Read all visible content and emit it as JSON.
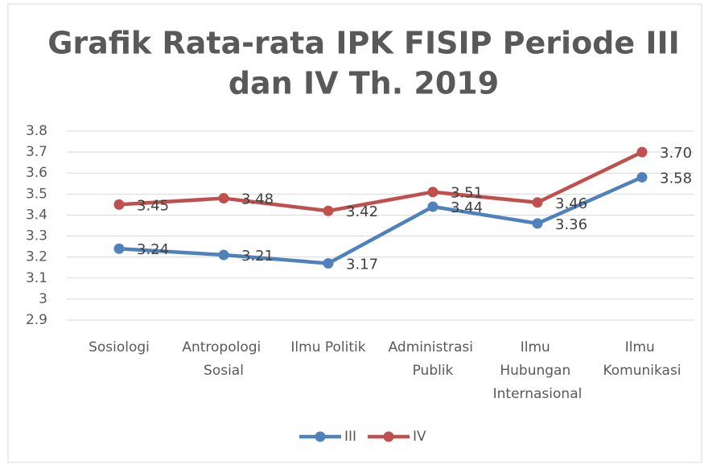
{
  "chart_data": {
    "type": "line",
    "title": [
      "Grafik Rata-rata IPK FISIP Periode III",
      "dan IV Th. 2019"
    ],
    "categories": [
      "Sosiologi",
      "Antropologi Sosial",
      "Ilmu Politik",
      "Administrasi Publik",
      "Ilmu Hubungan Internasional",
      "Ilmu Komunikasi"
    ],
    "series": [
      {
        "name": "III",
        "color": "#4f81bd",
        "values": [
          3.24,
          3.21,
          3.17,
          3.44,
          3.36,
          3.58
        ],
        "value_labels": [
          "3.24",
          "3.21",
          "3.17",
          "3.44",
          "3.36",
          "3.58"
        ]
      },
      {
        "name": "IV",
        "color": "#c0504d",
        "values": [
          3.45,
          3.48,
          3.42,
          3.51,
          3.46,
          3.7
        ],
        "value_labels": [
          "3.45",
          "3.48",
          "3.42",
          "3.51",
          "3.46",
          "3.70"
        ]
      }
    ],
    "ylim": [
      2.9,
      3.8
    ],
    "yticks": [
      2.9,
      3,
      3.1,
      3.2,
      3.3,
      3.4,
      3.5,
      3.6,
      3.7,
      3.8
    ],
    "grid": true,
    "legend": "bottom"
  }
}
